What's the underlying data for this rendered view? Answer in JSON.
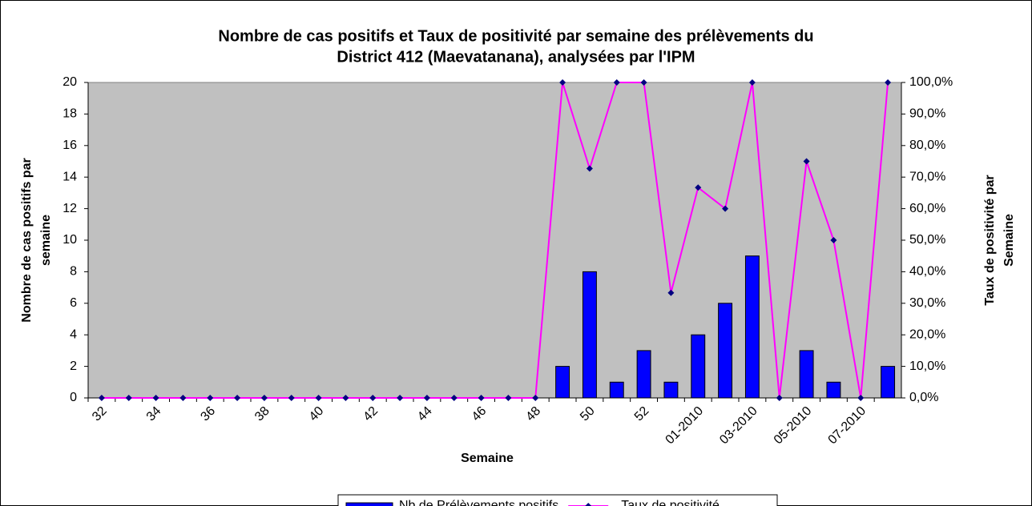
{
  "chart_data": {
    "type": "bar_line",
    "title": [
      "Nombre de cas positifs et Taux de positivité par semaine des prélèvements du",
      "District 412 (Maevatanana), analysées par l'IPM"
    ],
    "x_label": "Semaine",
    "y_label": [
      "Nombre de cas positifs par",
      "semaine"
    ],
    "y2_label": [
      "Taux de positivité par",
      "Semaine"
    ],
    "categories": [
      "32",
      null,
      "34",
      null,
      "36",
      null,
      "38",
      null,
      "40",
      null,
      "42",
      null,
      "44",
      null,
      "46",
      null,
      "48",
      null,
      "50",
      null,
      "52",
      null,
      "01-2010",
      null,
      "03-2010",
      null,
      "05-2010",
      null,
      "07-2010",
      null
    ],
    "series": [
      {
        "name": "Nb de Prélèvements positifs",
        "type": "bar",
        "color": "#0000ff",
        "values": [
          0,
          0,
          0,
          0,
          0,
          0,
          0,
          0,
          0,
          0,
          0,
          0,
          0,
          0,
          0,
          0,
          0,
          2,
          8,
          1,
          3,
          1,
          4,
          6,
          9,
          0,
          3,
          1,
          0,
          2
        ]
      },
      {
        "name": "Taux de positivité",
        "type": "line",
        "axis": "y2",
        "color": "#ff00ff",
        "marker_color": "#000080",
        "values": [
          0,
          0,
          0,
          0,
          0,
          0,
          0,
          0,
          0,
          0,
          0,
          0,
          0,
          0,
          0,
          0,
          0,
          100,
          72.7,
          100,
          100,
          33.3,
          66.7,
          60,
          100,
          0,
          75,
          50,
          0,
          100
        ]
      }
    ],
    "ylim": [
      0,
      20
    ],
    "yticks": [
      0,
      2,
      4,
      6,
      8,
      10,
      12,
      14,
      16,
      18,
      20
    ],
    "y2lim": [
      0,
      100
    ],
    "y2ticks": [
      {
        "value": 0,
        "label": "0,0%"
      },
      {
        "value": 10,
        "label": "10,0%"
      },
      {
        "value": 20,
        "label": "20,0%"
      },
      {
        "value": 30,
        "label": "30,0%"
      },
      {
        "value": 40,
        "label": "40,0%"
      },
      {
        "value": 50,
        "label": "50,0%"
      },
      {
        "value": 60,
        "label": "60,0%"
      },
      {
        "value": 70,
        "label": "70,0%"
      },
      {
        "value": 80,
        "label": "80,0%"
      },
      {
        "value": 90,
        "label": "90,0%"
      },
      {
        "value": 100,
        "label": "100,0%"
      }
    ],
    "plot_background": "#c0c0c0",
    "legend": "bottom"
  }
}
